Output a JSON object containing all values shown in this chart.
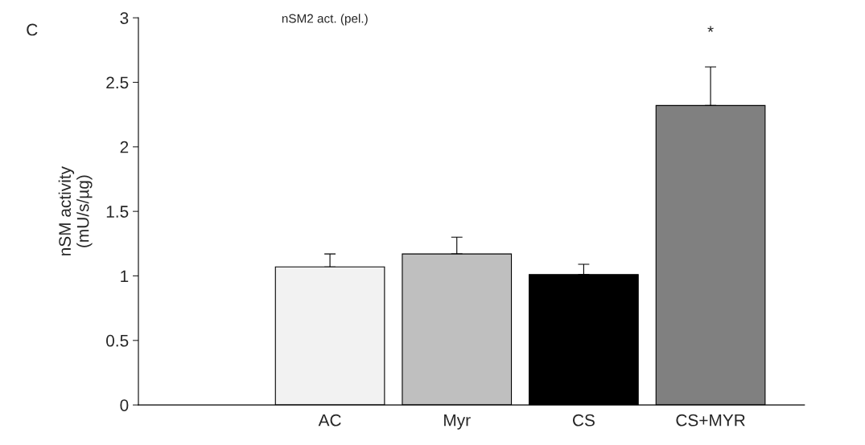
{
  "chart_data": {
    "type": "bar",
    "title": "nSM2 act. (pel.)",
    "ylabel": "nSM activity\n(mU/s/µg)",
    "categories": [
      "AC",
      "Myr",
      "CS",
      "CS+MYR"
    ],
    "values": [
      1.07,
      1.17,
      1.01,
      2.32
    ],
    "colors": [
      "#f2f2f2",
      "#bfbfbf",
      "#000000",
      "#808080"
    ],
    "errors": [
      [
        1.07,
        1.17
      ],
      [
        1.17,
        1.3
      ],
      [
        1.01,
        1.09
      ],
      [
        2.32,
        2.62
      ]
    ],
    "ylim": [
      0,
      3
    ],
    "yticks": [
      0,
      0.5,
      1,
      1.5,
      2,
      2.5,
      3
    ],
    "grid": false,
    "legend": false,
    "annotations": [
      "C",
      "*"
    ]
  }
}
